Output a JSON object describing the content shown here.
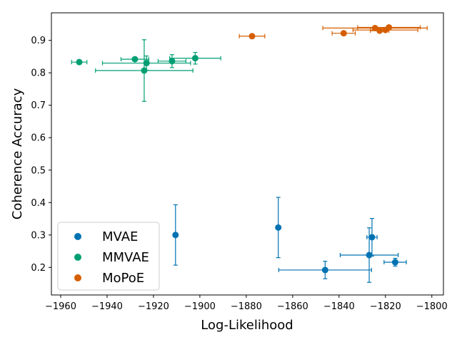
{
  "chart_data": {
    "type": "scatter",
    "title": "",
    "xlabel": "Log-Likelihood",
    "ylabel": "Coherence Accuracy",
    "xlim": [
      -1964,
      -1795
    ],
    "ylim": [
      0.115,
      0.985
    ],
    "xticks": [
      -1960,
      -1940,
      -1920,
      -1900,
      -1880,
      -1860,
      -1840,
      -1820,
      -1800
    ],
    "xtick_labels": [
      "−1960",
      "−1940",
      "−1920",
      "−1900",
      "−1880",
      "−1860",
      "−1840",
      "−1820",
      "−1800"
    ],
    "yticks": [
      0.2,
      0.3,
      0.4,
      0.5,
      0.6,
      0.7,
      0.8,
      0.9
    ],
    "ytick_labels": [
      "0.2",
      "0.3",
      "0.4",
      "0.5",
      "0.6",
      "0.7",
      "0.8",
      "0.9"
    ],
    "grid": false,
    "legend_position": "bottom-left",
    "series": [
      {
        "name": "MVAE",
        "color": "#0072b2",
        "points": [
          {
            "x": -1910.5,
            "y": 0.3,
            "xerr": 0,
            "yerr": 0.093
          },
          {
            "x": -1866.2,
            "y": 0.323,
            "xerr": 0,
            "yerr": 0.093
          },
          {
            "x": -1846.0,
            "y": 0.192,
            "xerr": 20.0,
            "yerr": 0.027
          },
          {
            "x": -1827.0,
            "y": 0.238,
            "xerr": 12.5,
            "yerr": 0.084
          },
          {
            "x": -1825.8,
            "y": 0.293,
            "xerr": 2.2,
            "yerr": 0.058
          },
          {
            "x": -1815.8,
            "y": 0.216,
            "xerr": 4.8,
            "yerr": 0.012
          }
        ]
      },
      {
        "name": "MMVAE",
        "color": "#009e73",
        "points": [
          {
            "x": -1952.0,
            "y": 0.833,
            "xerr": 3.3,
            "yerr": 0.0
          },
          {
            "x": -1928.0,
            "y": 0.842,
            "xerr": 6.0,
            "yerr": 0.0
          },
          {
            "x": -1923.0,
            "y": 0.83,
            "xerr": 19.0,
            "yerr": 0.022
          },
          {
            "x": -1924.0,
            "y": 0.807,
            "xerr": 21.0,
            "yerr": 0.095
          },
          {
            "x": -1912.0,
            "y": 0.836,
            "xerr": 6.0,
            "yerr": 0.02
          },
          {
            "x": -1902.0,
            "y": 0.845,
            "xerr": 11.0,
            "yerr": 0.018
          }
        ]
      },
      {
        "name": "MoPoE",
        "color": "#d55e00",
        "points": [
          {
            "x": -1877.5,
            "y": 0.913,
            "xerr": 5.5,
            "yerr": 0.0
          },
          {
            "x": -1838.0,
            "y": 0.922,
            "xerr": 5.0,
            "yerr": 0.0
          },
          {
            "x": -1824.5,
            "y": 0.938,
            "xerr": 22.5,
            "yerr": 0.0
          },
          {
            "x": -1822.5,
            "y": 0.93,
            "xerr": 4.0,
            "yerr": 0.0
          },
          {
            "x": -1820.0,
            "y": 0.932,
            "xerr": 14.0,
            "yerr": 0.0
          },
          {
            "x": -1818.5,
            "y": 0.94,
            "xerr": 13.5,
            "yerr": 0.0
          }
        ]
      }
    ]
  }
}
